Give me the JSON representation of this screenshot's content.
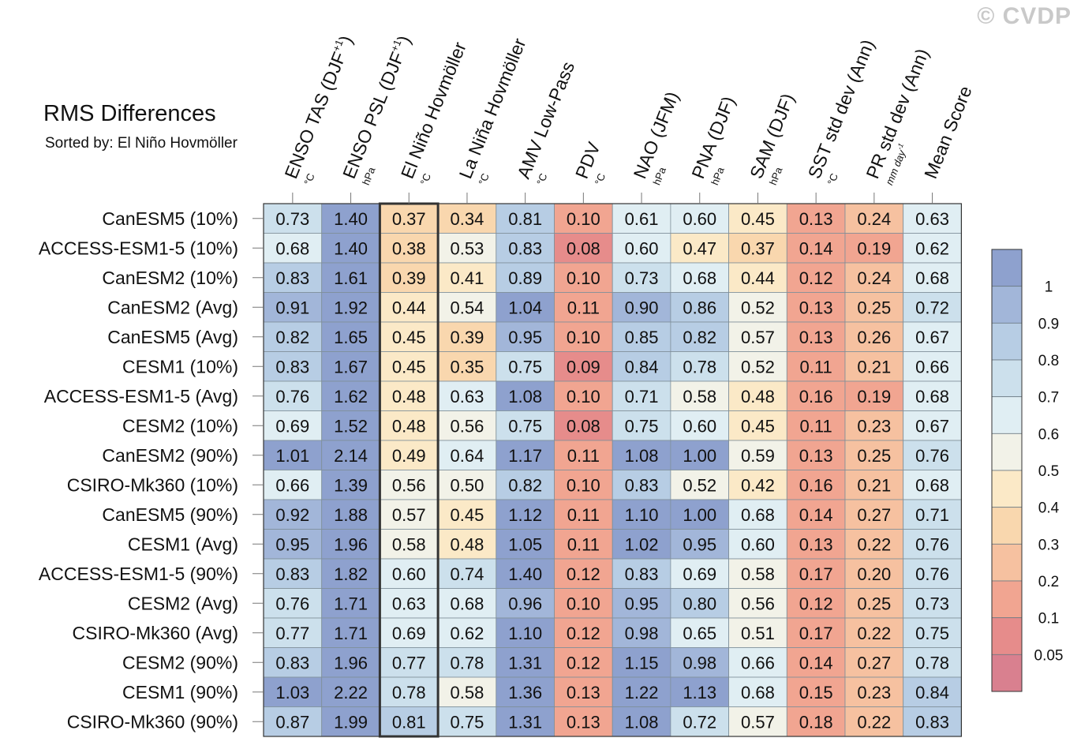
{
  "watermark": "© CVDP",
  "chart_data": {
    "type": "heatmap",
    "title": "RMS Differences",
    "subtitle": "Sorted by: El Niño Hovmöller",
    "highlight_column": 2,
    "columns": [
      {
        "label": "ENSO TAS (DJF",
        "sup": "+1",
        "close": ")",
        "unit": "°C"
      },
      {
        "label": "ENSO PSL (DJF",
        "sup": "+1",
        "close": ")",
        "unit": "hPa"
      },
      {
        "label": "El Niño Hovmöller",
        "sup": "",
        "close": "",
        "unit": "°C"
      },
      {
        "label": "La Niña Hovmöller",
        "sup": "",
        "close": "",
        "unit": "°C"
      },
      {
        "label": "AMV Low-Pass",
        "sup": "",
        "close": "",
        "unit": "°C"
      },
      {
        "label": "PDV",
        "sup": "",
        "close": "",
        "unit": "°C"
      },
      {
        "label": "NAO (JFM)",
        "sup": "",
        "close": "",
        "unit": "hPa"
      },
      {
        "label": "PNA (DJF)",
        "sup": "",
        "close": "",
        "unit": "hPa"
      },
      {
        "label": "SAM (DJF)",
        "sup": "",
        "close": "",
        "unit": "hPa"
      },
      {
        "label": "SST std dev (Ann)",
        "sup": "",
        "close": "",
        "unit": "°C"
      },
      {
        "label": "PR std dev (Ann)",
        "sup": "",
        "close": "",
        "unit": "mm day",
        "unit_sup": "-1"
      },
      {
        "label": "Mean Score",
        "sup": "",
        "close": "",
        "unit": ""
      }
    ],
    "rows": [
      "CanESM5 (10%)",
      "ACCESS-ESM1-5 (10%)",
      "CanESM2 (10%)",
      "CanESM2 (Avg)",
      "CanESM5 (Avg)",
      "CESM1 (10%)",
      "ACCESS-ESM1-5 (Avg)",
      "CESM2 (10%)",
      "CanESM2 (90%)",
      "CSIRO-Mk360 (10%)",
      "CanESM5 (90%)",
      "CESM1 (Avg)",
      "ACCESS-ESM1-5 (90%)",
      "CESM2 (Avg)",
      "CSIRO-Mk360 (Avg)",
      "CESM2 (90%)",
      "CESM1 (90%)",
      "CSIRO-Mk360 (90%)"
    ],
    "values": [
      [
        "0.73",
        "1.40",
        "0.37",
        "0.34",
        "0.81",
        "0.10",
        "0.61",
        "0.60",
        "0.45",
        "0.13",
        "0.24",
        "0.63"
      ],
      [
        "0.68",
        "1.40",
        "0.38",
        "0.53",
        "0.83",
        "0.08",
        "0.60",
        "0.47",
        "0.37",
        "0.14",
        "0.19",
        "0.62"
      ],
      [
        "0.83",
        "1.61",
        "0.39",
        "0.41",
        "0.89",
        "0.10",
        "0.73",
        "0.68",
        "0.44",
        "0.12",
        "0.24",
        "0.68"
      ],
      [
        "0.91",
        "1.92",
        "0.44",
        "0.54",
        "1.04",
        "0.11",
        "0.90",
        "0.86",
        "0.52",
        "0.13",
        "0.25",
        "0.72"
      ],
      [
        "0.82",
        "1.65",
        "0.45",
        "0.39",
        "0.95",
        "0.10",
        "0.85",
        "0.82",
        "0.57",
        "0.13",
        "0.26",
        "0.67"
      ],
      [
        "0.83",
        "1.67",
        "0.45",
        "0.35",
        "0.75",
        "0.09",
        "0.84",
        "0.78",
        "0.52",
        "0.11",
        "0.21",
        "0.66"
      ],
      [
        "0.76",
        "1.62",
        "0.48",
        "0.63",
        "1.08",
        "0.10",
        "0.71",
        "0.58",
        "0.48",
        "0.16",
        "0.19",
        "0.68"
      ],
      [
        "0.69",
        "1.52",
        "0.48",
        "0.56",
        "0.75",
        "0.08",
        "0.75",
        "0.60",
        "0.45",
        "0.11",
        "0.23",
        "0.67"
      ],
      [
        "1.01",
        "2.14",
        "0.49",
        "0.64",
        "1.17",
        "0.11",
        "1.08",
        "1.00",
        "0.59",
        "0.13",
        "0.25",
        "0.76"
      ],
      [
        "0.66",
        "1.39",
        "0.56",
        "0.50",
        "0.82",
        "0.10",
        "0.83",
        "0.52",
        "0.42",
        "0.16",
        "0.21",
        "0.68"
      ],
      [
        "0.92",
        "1.88",
        "0.57",
        "0.45",
        "1.12",
        "0.11",
        "1.10",
        "1.00",
        "0.68",
        "0.14",
        "0.27",
        "0.71"
      ],
      [
        "0.95",
        "1.96",
        "0.58",
        "0.48",
        "1.05",
        "0.11",
        "1.02",
        "0.95",
        "0.60",
        "0.13",
        "0.22",
        "0.76"
      ],
      [
        "0.83",
        "1.82",
        "0.60",
        "0.74",
        "1.40",
        "0.12",
        "0.83",
        "0.69",
        "0.58",
        "0.17",
        "0.20",
        "0.76"
      ],
      [
        "0.76",
        "1.71",
        "0.63",
        "0.68",
        "0.96",
        "0.10",
        "0.95",
        "0.80",
        "0.56",
        "0.12",
        "0.25",
        "0.73"
      ],
      [
        "0.77",
        "1.71",
        "0.69",
        "0.62",
        "1.10",
        "0.12",
        "0.98",
        "0.65",
        "0.51",
        "0.17",
        "0.22",
        "0.75"
      ],
      [
        "0.83",
        "1.96",
        "0.77",
        "0.78",
        "1.31",
        "0.12",
        "1.15",
        "0.98",
        "0.66",
        "0.14",
        "0.27",
        "0.78"
      ],
      [
        "1.03",
        "2.22",
        "0.78",
        "0.58",
        "1.36",
        "0.13",
        "1.22",
        "1.13",
        "0.68",
        "0.15",
        "0.23",
        "0.84"
      ],
      [
        "0.87",
        "1.99",
        "0.81",
        "0.75",
        "1.31",
        "0.13",
        "1.08",
        "0.72",
        "0.57",
        "0.18",
        "0.22",
        "0.83"
      ]
    ],
    "colorbar": {
      "levels": [
        "1",
        "0.9",
        "0.8",
        "0.7",
        "0.6",
        "0.5",
        "0.4",
        "0.3",
        "0.2",
        "0.1",
        "0.05"
      ],
      "thresholds": [
        1.0,
        0.9,
        0.8,
        0.7,
        0.6,
        0.5,
        0.4,
        0.3,
        0.2,
        0.1,
        0.05
      ],
      "colors": [
        "#8ea1ce",
        "#a2b6d9",
        "#b7cde4",
        "#cce0ec",
        "#e0eef3",
        "#f2f2e8",
        "#fbe9c7",
        "#f9d7ae",
        "#f6c1a0",
        "#f1a591",
        "#e68c8b",
        "#d9808f"
      ]
    }
  }
}
